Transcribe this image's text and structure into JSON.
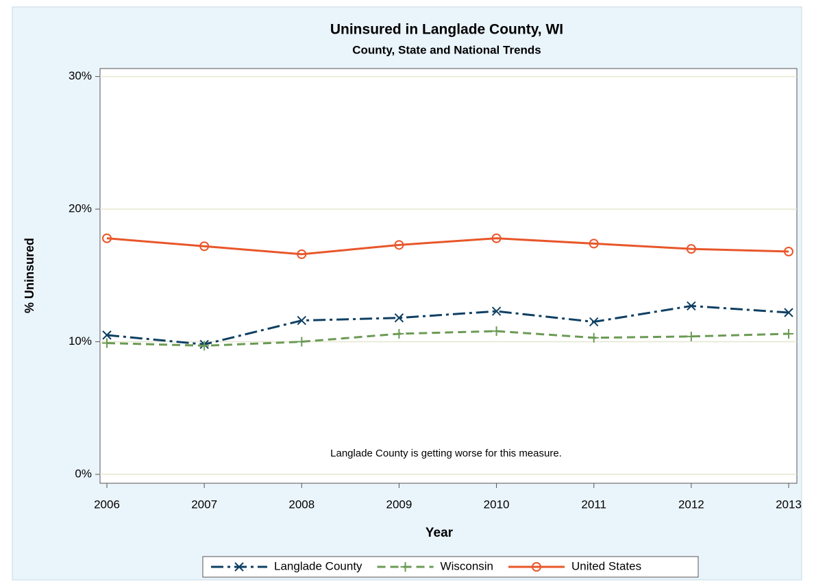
{
  "chart_data": {
    "type": "line",
    "title": "Uninsured in Langlade County, WI",
    "subtitle": "County, State and National Trends",
    "x_label": "Year",
    "y_label": "% Uninsured",
    "annotation": "Langlade County is getting worse for this measure.",
    "x": [
      2006,
      2007,
      2008,
      2009,
      2010,
      2011,
      2012,
      2013
    ],
    "xlim": [
      2006,
      2013
    ],
    "xticks": [
      2006,
      2007,
      2008,
      2009,
      2010,
      2011,
      2012,
      2013
    ],
    "ylim": [
      -0.67,
      30.6
    ],
    "yticks": [
      {
        "value": 0,
        "label": "0%"
      },
      {
        "value": 10,
        "label": "10%"
      },
      {
        "value": 20,
        "label": "20%"
      },
      {
        "value": 30,
        "label": "30%"
      }
    ],
    "grid": true,
    "legend": "bottom",
    "series": [
      {
        "name": "Langlade County",
        "color": "#0e3f63",
        "dash": "18,6,4,6",
        "marker": "x",
        "values": [
          10.5,
          9.8,
          11.6,
          11.8,
          12.3,
          11.5,
          12.7,
          12.2
        ]
      },
      {
        "name": "Wisconsin",
        "color": "#6b9a54",
        "dash": "12,7",
        "marker": "plus",
        "values": [
          9.9,
          9.7,
          10.0,
          10.6,
          10.8,
          10.3,
          10.4,
          10.6
        ]
      },
      {
        "name": "United States",
        "color": "#e8562a",
        "dash": "none",
        "marker": "circle",
        "values": [
          17.8,
          17.2,
          16.6,
          17.3,
          17.8,
          17.4,
          17.0,
          16.8
        ]
      }
    ]
  }
}
